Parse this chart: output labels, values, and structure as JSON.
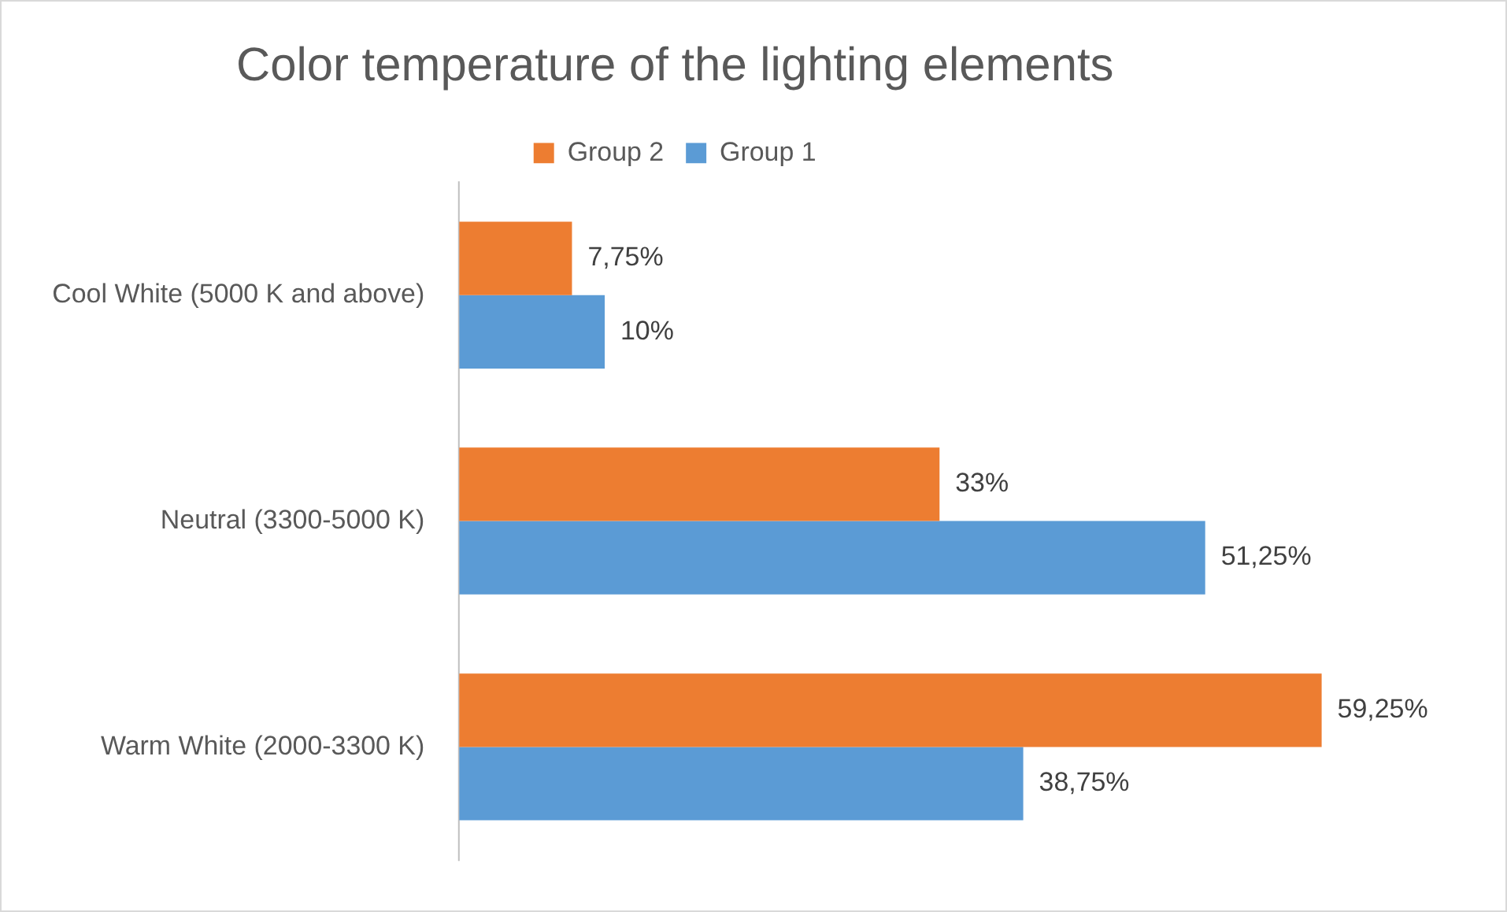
{
  "chart_data": {
    "type": "bar",
    "orientation": "horizontal",
    "title": "Color temperature of the lighting elements",
    "categories": [
      "Cool White (5000 K and above)",
      "Neutral (3300-5000 K)",
      "Warm White (2000-3300 K)"
    ],
    "series": [
      {
        "name": "Group 2",
        "color": "#ed7d31",
        "values": [
          7.75,
          33,
          59.25
        ],
        "value_labels": [
          "7,75%",
          "33%",
          "59,25%"
        ]
      },
      {
        "name": "Group 1",
        "color": "#5b9bd5",
        "values": [
          10,
          51.25,
          38.75
        ],
        "value_labels": [
          "10%",
          "51,25%",
          "38,75%"
        ]
      }
    ],
    "tick_labels": "y",
    "grid": false,
    "legend": "top"
  }
}
